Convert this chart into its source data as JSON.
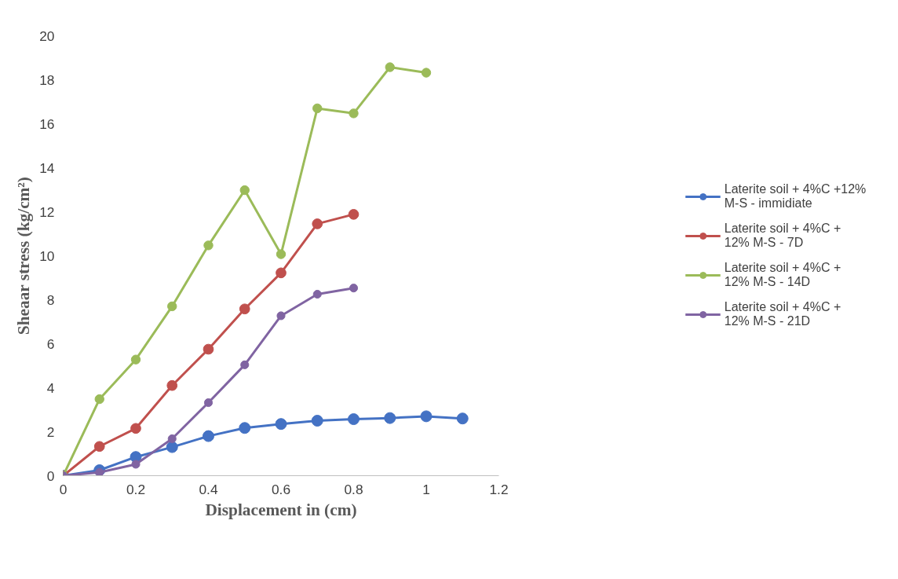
{
  "chart_data": {
    "type": "line",
    "xlabel": "Displacement in (cm)",
    "ylabel": "Sheaar stress (kg/cm²)",
    "xlim": [
      0,
      1.2
    ],
    "xticks": [
      0,
      0.2,
      0.4,
      0.6,
      0.8,
      1,
      1.2
    ],
    "ylim": [
      0,
      20
    ],
    "yticks": [
      0,
      2,
      4,
      6,
      8,
      10,
      12,
      14,
      16,
      18,
      20
    ],
    "grid": false,
    "legend": "right",
    "marker": "circle",
    "line_style": "solid",
    "series": [
      {
        "name": "Laterite soil + 4%C +12% M-S - immidiate",
        "color": "#4472c4",
        "x": [
          0,
          0.1,
          0.2,
          0.3,
          0.4,
          0.5,
          0.6,
          0.7,
          0.8,
          0.9,
          1,
          1.1
        ],
        "values": [
          0,
          0.25,
          0.85,
          1.3,
          1.8,
          2.17,
          2.35,
          2.5,
          2.57,
          2.62,
          2.7,
          2.6
        ]
      },
      {
        "name": "Laterite soil + 4%C + 12% M-S - 7D",
        "color": "#c0504d",
        "x": [
          0,
          0.1,
          0.2,
          0.3,
          0.4,
          0.5,
          0.6,
          0.7,
          0.8
        ],
        "values": [
          0,
          1.33,
          2.15,
          4.1,
          5.75,
          7.58,
          9.22,
          11.45,
          11.88
        ]
      },
      {
        "name": "Laterite soil + 4%C + 12% M-S - 14D",
        "color": "#9bbb59",
        "x": [
          0,
          0.1,
          0.2,
          0.3,
          0.4,
          0.5,
          0.6,
          0.7,
          0.8,
          0.9,
          1
        ],
        "values": [
          0,
          3.48,
          5.28,
          7.7,
          10.47,
          12.98,
          10.07,
          16.7,
          16.47,
          18.57,
          18.32
        ]
      },
      {
        "name": "Laterite soil + 4%C + 12% M-S - 21D",
        "color": "#8064a2",
        "x": [
          0,
          0.1,
          0.2,
          0.3,
          0.4,
          0.5,
          0.6,
          0.7,
          0.8
        ],
        "values": [
          0,
          0.15,
          0.52,
          1.68,
          3.32,
          5.04,
          7.27,
          8.25,
          8.53
        ]
      }
    ]
  }
}
